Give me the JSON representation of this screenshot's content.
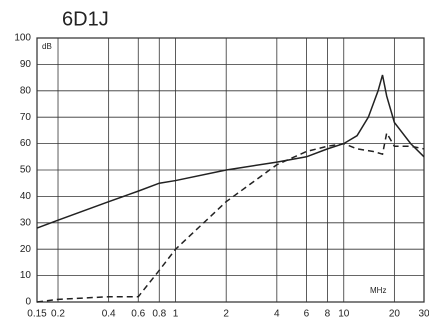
{
  "chart_data": {
    "type": "line",
    "title": "6D1J",
    "y_unit_label": "dB",
    "x_unit_label": "MHz",
    "x_scale": "log",
    "grid": true,
    "xlim": [
      0.15,
      30
    ],
    "ylim": [
      0,
      100
    ],
    "xticks": [
      0.15,
      0.2,
      0.4,
      0.6,
      0.8,
      1,
      2,
      4,
      6,
      8,
      10,
      20,
      30
    ],
    "yticks": [
      0,
      10,
      20,
      30,
      40,
      50,
      60,
      70,
      80,
      90,
      100
    ],
    "series": [
      {
        "color": "#222222",
        "line_style": "solid",
        "x": [
          0.15,
          0.2,
          0.4,
          0.6,
          0.8,
          1,
          2,
          4,
          6,
          8,
          10,
          12,
          14,
          16,
          17,
          18,
          20,
          25,
          30
        ],
        "values": [
          28,
          31,
          38,
          42,
          45,
          46,
          50,
          53,
          55,
          58,
          60,
          63,
          70,
          80,
          86,
          78,
          68,
          60,
          55
        ]
      },
      {
        "color": "#222222",
        "line_style": "dashed",
        "x": [
          0.15,
          0.2,
          0.4,
          0.6,
          0.8,
          1,
          2,
          4,
          6,
          8,
          10,
          12,
          15,
          17,
          18,
          20,
          25,
          30
        ],
        "values": [
          0,
          1,
          2,
          2,
          12,
          20,
          38,
          52,
          57,
          59,
          60,
          58,
          57,
          56,
          64,
          59,
          59,
          58
        ]
      }
    ]
  }
}
